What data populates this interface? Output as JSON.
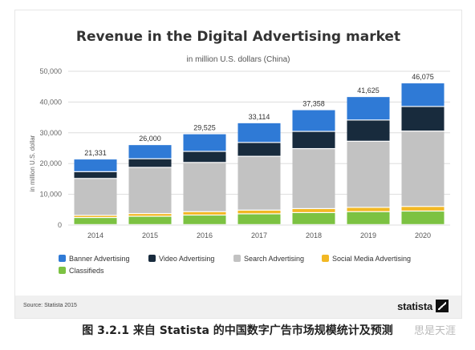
{
  "chart_data": {
    "type": "bar",
    "stacked": true,
    "title": "Revenue in the Digital Advertising market",
    "subtitle": "in million U.S. dollars (China)",
    "ylabel": "in million U.S. dollar",
    "xlabel": "",
    "ylim": [
      0,
      50000
    ],
    "yticks": [
      "0",
      "10,000",
      "20,000",
      "30,000",
      "40,000",
      "50,000"
    ],
    "grid": true,
    "legend_position": "bottom",
    "categories": [
      "2014",
      "2015",
      "2016",
      "2017",
      "2018",
      "2019",
      "2020"
    ],
    "totals_labels": [
      "21,331",
      "26,000",
      "29,525",
      "33,114",
      "37,358",
      "41,625",
      "46,075"
    ],
    "series": [
      {
        "name": "Classifieds",
        "color": "#7cc242",
        "values": [
          2300,
          2700,
          3100,
          3500,
          3900,
          4200,
          4400
        ]
      },
      {
        "name": "Social Media Advertising",
        "color": "#f2b824",
        "values": [
          700,
          900,
          1100,
          1200,
          1300,
          1400,
          1500
        ]
      },
      {
        "name": "Search Advertising",
        "color": "#c2c2c2",
        "values": [
          12000,
          15000,
          16000,
          17500,
          19500,
          21500,
          24500
        ]
      },
      {
        "name": "Video Advertising",
        "color": "#182b3d",
        "values": [
          2200,
          2800,
          3600,
          4500,
          5600,
          6900,
          8000
        ]
      },
      {
        "name": "Banner Advertising",
        "color": "#2f7ad6",
        "values": [
          4131,
          4600,
          5725,
          6414,
          7058,
          7625,
          7675
        ]
      }
    ],
    "legend_order": [
      "Banner Advertising",
      "Video Advertising",
      "Search Advertising",
      "Social Media Advertising",
      "Classifieds"
    ]
  },
  "source": "Source: Statista 2015",
  "brand": "statista",
  "caption": "图 3.2.1  来自 Statista 的中国数字广告市场规模统计及预测",
  "watermark": "思是天涯"
}
